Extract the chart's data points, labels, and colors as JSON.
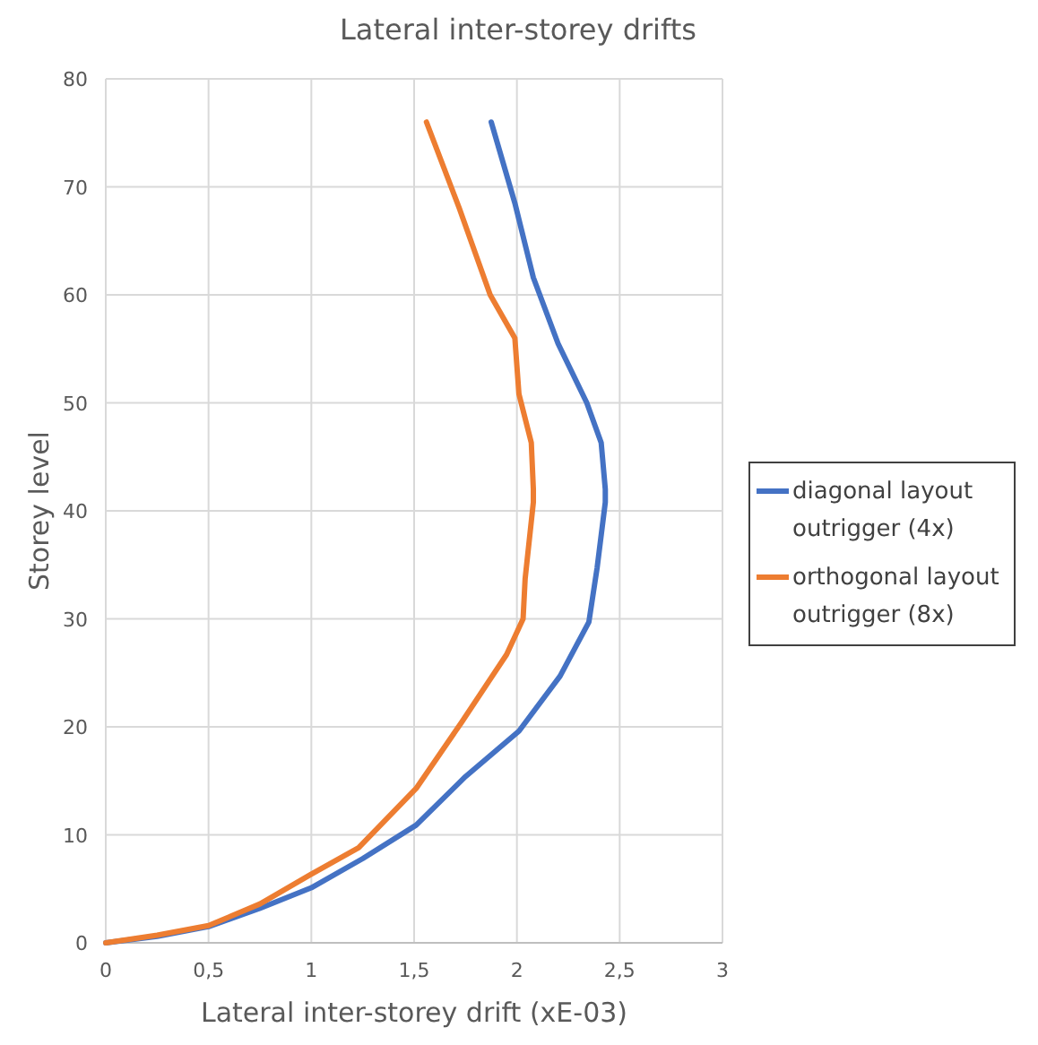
{
  "chart_data": {
    "type": "line",
    "title": "Lateral inter-storey drifts",
    "xlabel": "Lateral inter-storey drift (xE-03)",
    "ylabel": "Storey level",
    "xlim": [
      0,
      3
    ],
    "xticks": [
      0,
      {
        "value": 0.5,
        "label": "0,5"
      },
      1,
      {
        "value": 1.5,
        "label": "1,5"
      },
      2,
      {
        "value": 2.5,
        "label": "2,5"
      },
      3
    ],
    "ylim": [
      0,
      80
    ],
    "yticks": [
      0,
      10,
      20,
      30,
      40,
      50,
      60,
      70,
      80
    ],
    "grid": true,
    "legend": "right",
    "line_style": "solid",
    "marker": "none",
    "series": [
      {
        "name": "diagonal layout outrigger (4x)",
        "color": "#4472c4",
        "x": [
          0,
          0.25,
          0.5,
          0.75,
          1,
          1.25,
          1.51,
          1.75,
          2.01,
          2.21,
          2.35,
          2.39,
          2.43,
          2.43,
          2.41,
          2.34,
          2.2,
          2.08,
          1.99,
          1.875
        ],
        "values": [
          0,
          0.6,
          1.5,
          3.2,
          5.1,
          7.8,
          10.9,
          15.4,
          19.6,
          24.7,
          29.7,
          34.7,
          40.8,
          42,
          46.3,
          50,
          55.5,
          61.6,
          68.5,
          76
        ]
      },
      {
        "name": "orthogonal layout outrigger (8x)",
        "color": "#ed7d31",
        "x": [
          0,
          0.25,
          0.5,
          0.75,
          0.994,
          1.23,
          1.51,
          1.73,
          1.95,
          2.03,
          2.04,
          2.08,
          2.08,
          2.07,
          2.01,
          1.99,
          1.87,
          1.72,
          1.56
        ],
        "values": [
          0,
          0.7,
          1.6,
          3.6,
          6.3,
          8.8,
          14.3,
          20.4,
          26.7,
          30,
          33.7,
          40.8,
          42,
          46.3,
          50.8,
          56,
          60,
          68,
          76
        ]
      }
    ]
  }
}
